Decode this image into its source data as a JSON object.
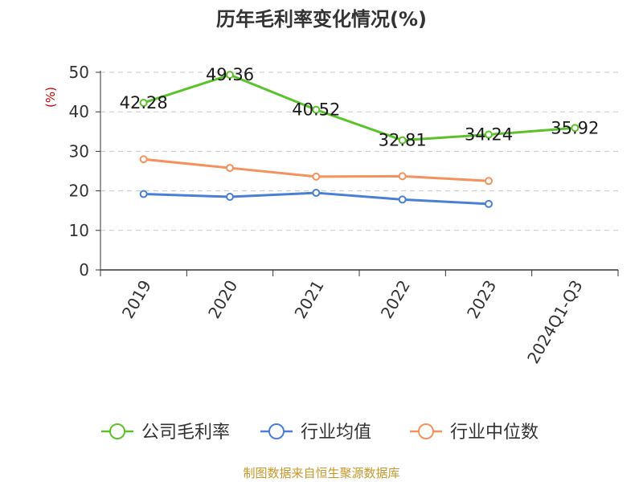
{
  "title": "历年毛利率变化情况(%)",
  "unit_label": "(%)",
  "source": "制图数据来自恒生聚源数据库",
  "chart_data": {
    "type": "line",
    "title": "历年毛利率变化情况(%)",
    "ylabel": "(%)",
    "categories": [
      "2019",
      "2020",
      "2021",
      "2022",
      "2023",
      "2024Q1-Q3"
    ],
    "ylim": [
      0,
      50
    ],
    "yticks": [
      0,
      10,
      20,
      30,
      40,
      50
    ],
    "grid": true,
    "legend_position": "bottom",
    "series": [
      {
        "name": "公司毛利率",
        "color": "#5cc22c",
        "values": [
          42.28,
          49.36,
          40.52,
          32.81,
          34.24,
          35.92
        ],
        "labels": [
          "42.28",
          "49.36",
          "40.52",
          "32.81",
          "34.24",
          "35.92"
        ]
      },
      {
        "name": "行业均值",
        "color": "#4a7fd8",
        "values": [
          19.2,
          18.5,
          19.5,
          17.8,
          16.7,
          null
        ]
      },
      {
        "name": "行业中位数",
        "color": "#f5915c",
        "values": [
          28.0,
          25.8,
          23.6,
          23.7,
          22.5,
          null
        ]
      }
    ]
  }
}
